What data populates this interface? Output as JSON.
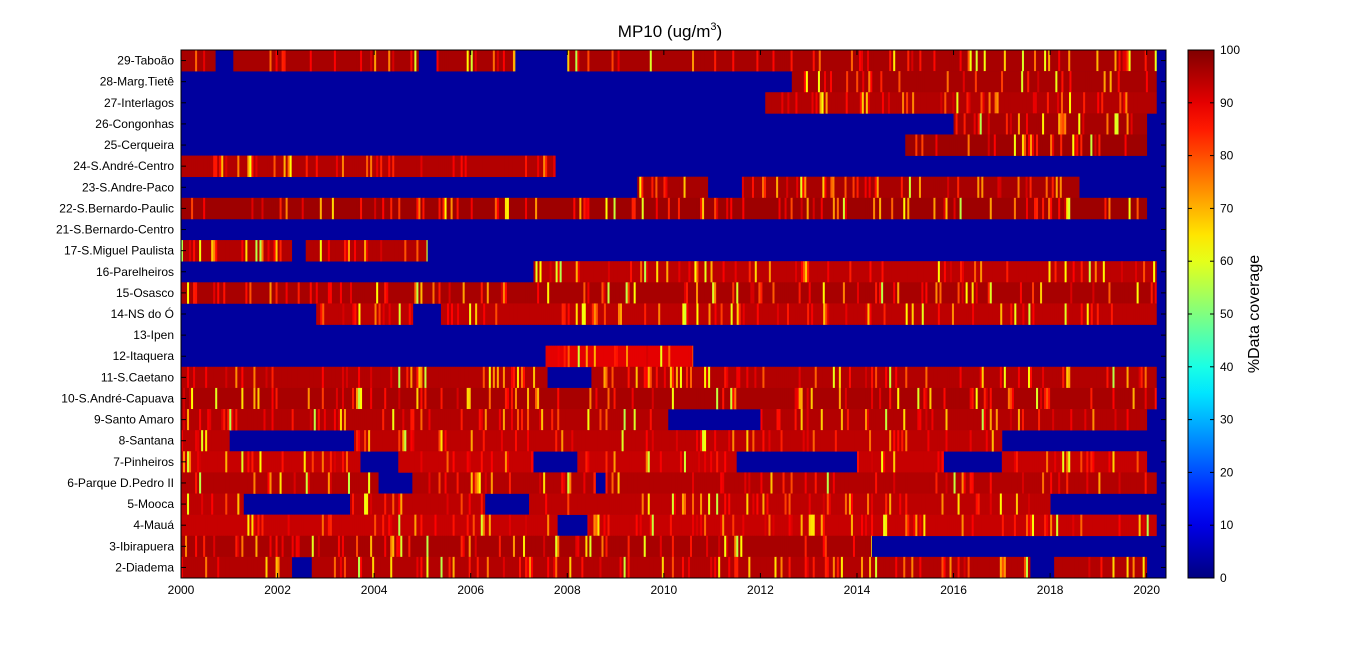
{
  "chart_data": {
    "type": "heatmap",
    "title": "MP10 (ug/m",
    "title_superscript": "3",
    "title_suffix": ")",
    "colorbar_label": "%Data coverage",
    "colormap": "jet",
    "colorbar_range": [
      0,
      100
    ],
    "colorbar_ticks": [
      "100",
      "90",
      "80",
      "70",
      "60",
      "50",
      "40",
      "30",
      "20",
      "10",
      "0"
    ],
    "x_range": [
      2000,
      2020.4
    ],
    "x_ticks": [
      "2000",
      "2002",
      "2004",
      "2006",
      "2008",
      "2010",
      "2012",
      "2014",
      "2016",
      "2018",
      "2020"
    ],
    "stations": [
      {
        "name": "29-Taboão",
        "segments": [
          {
            "start": 2000.0,
            "end": 2020.2,
            "value": 96
          }
        ],
        "gaps": [
          [
            2000.7,
            2001.1
          ],
          [
            2004.9,
            2005.3
          ],
          [
            2006.9,
            2008.0
          ]
        ]
      },
      {
        "name": "28-Marg.Tietê",
        "segments": [
          {
            "start": 2012.65,
            "end": 2020.2,
            "value": 96
          }
        ],
        "gaps": []
      },
      {
        "name": "27-Interlagos",
        "segments": [
          {
            "start": 2012.1,
            "end": 2020.2,
            "value": 95
          }
        ],
        "gaps": []
      },
      {
        "name": "26-Congonhas",
        "segments": [
          {
            "start": 2016.0,
            "end": 2020.0,
            "value": 96
          }
        ],
        "gaps": []
      },
      {
        "name": "25-Cerqueira",
        "segments": [
          {
            "start": 2015.0,
            "end": 2020.0,
            "value": 97
          }
        ],
        "gaps": []
      },
      {
        "name": "24-S.André-Centro",
        "segments": [
          {
            "start": 2000.0,
            "end": 2007.75,
            "value": 95
          }
        ],
        "gaps": []
      },
      {
        "name": "23-S.Andre-Paco",
        "segments": [
          {
            "start": 2009.45,
            "end": 2018.6,
            "value": 96
          }
        ],
        "gaps": [
          [
            2010.9,
            2011.6
          ]
        ]
      },
      {
        "name": "22-S.Bernardo-Paulic",
        "segments": [
          {
            "start": 2000.0,
            "end": 2020.0,
            "value": 97
          }
        ],
        "gaps": []
      },
      {
        "name": "21-S.Bernardo-Centro",
        "segments": [],
        "gaps": []
      },
      {
        "name": "17-S.Miguel Paulista",
        "segments": [
          {
            "start": 2000.0,
            "end": 2005.1,
            "value": 95
          }
        ],
        "gaps": [
          [
            2002.3,
            2002.6
          ]
        ]
      },
      {
        "name": "16-Parelheiros",
        "segments": [
          {
            "start": 2007.3,
            "end": 2020.2,
            "value": 94
          }
        ],
        "gaps": []
      },
      {
        "name": "15-Osasco",
        "segments": [
          {
            "start": 2000.0,
            "end": 2020.2,
            "value": 96
          }
        ],
        "gaps": []
      },
      {
        "name": "14-NS do Ó",
        "segments": [
          {
            "start": 2002.8,
            "end": 2020.2,
            "value": 94
          }
        ],
        "gaps": [
          [
            2004.8,
            2005.4
          ]
        ]
      },
      {
        "name": "13-Ipen",
        "segments": [],
        "gaps": []
      },
      {
        "name": "12-Itaquera",
        "segments": [
          {
            "start": 2007.55,
            "end": 2010.6,
            "value": 90
          }
        ],
        "gaps": []
      },
      {
        "name": "11-S.Caetano",
        "segments": [
          {
            "start": 2000.0,
            "end": 2020.2,
            "value": 95
          }
        ],
        "gaps": [
          [
            2007.6,
            2008.5
          ]
        ]
      },
      {
        "name": "10-S.André-Capuava",
        "segments": [
          {
            "start": 2000.0,
            "end": 2020.2,
            "value": 96
          }
        ],
        "gaps": []
      },
      {
        "name": "9-Santo Amaro",
        "segments": [
          {
            "start": 2000.0,
            "end": 2020.0,
            "value": 95
          }
        ],
        "gaps": [
          [
            2010.1,
            2012.0
          ]
        ]
      },
      {
        "name": "8-Santana",
        "segments": [
          {
            "start": 2000.0,
            "end": 2017.0,
            "value": 94
          }
        ],
        "gaps": [
          [
            2001.0,
            2003.6
          ]
        ]
      },
      {
        "name": "7-Pinheiros",
        "segments": [
          {
            "start": 2000.0,
            "end": 2020.0,
            "value": 93
          }
        ],
        "gaps": [
          [
            2003.7,
            2004.5
          ],
          [
            2007.3,
            2008.2
          ],
          [
            2011.5,
            2014.0
          ],
          [
            2015.8,
            2017.0
          ]
        ]
      },
      {
        "name": "6-Parque D.Pedro II",
        "segments": [
          {
            "start": 2000.0,
            "end": 2020.2,
            "value": 95
          }
        ],
        "gaps": [
          [
            2004.1,
            2004.8
          ],
          [
            2008.6,
            2008.8
          ]
        ]
      },
      {
        "name": "5-Mooca",
        "segments": [
          {
            "start": 2000.0,
            "end": 2020.2,
            "value": 94
          }
        ],
        "gaps": [
          [
            2001.3,
            2003.5
          ],
          [
            2006.3,
            2007.2
          ],
          [
            2018.0,
            2020.2
          ]
        ]
      },
      {
        "name": "4-Mauá",
        "segments": [
          {
            "start": 2000.0,
            "end": 2020.2,
            "value": 93
          }
        ],
        "gaps": [
          [
            2007.8,
            2008.4
          ]
        ]
      },
      {
        "name": "3-Ibirapuera",
        "segments": [
          {
            "start": 2000.0,
            "end": 2014.3,
            "value": 96
          }
        ],
        "gaps": []
      },
      {
        "name": "2-Diadema",
        "segments": [
          {
            "start": 2000.0,
            "end": 2020.0,
            "value": 95
          }
        ],
        "gaps": [
          [
            2002.3,
            2002.7
          ],
          [
            2017.6,
            2018.1
          ]
        ]
      }
    ]
  }
}
